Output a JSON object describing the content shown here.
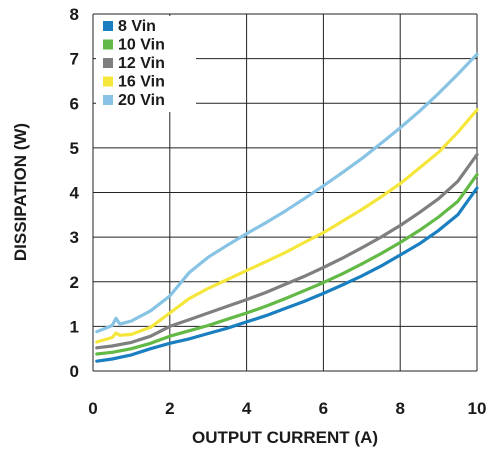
{
  "chart_data": {
    "type": "line",
    "xlabel": "OUTPUT CURRENT (A)",
    "ylabel": "DISSIPATION (W)",
    "xlim": [
      0,
      10
    ],
    "ylim": [
      0,
      8
    ],
    "xticks": [
      "0",
      "2",
      "4",
      "6",
      "8",
      "10"
    ],
    "yticks": [
      "0",
      "1",
      "2",
      "3",
      "4",
      "5",
      "6",
      "7",
      "8"
    ],
    "grid": true,
    "legend_position": "top-left",
    "series": [
      {
        "name": "8 Vin",
        "color": "#1a7fc1",
        "x": [
          0.1,
          0.5,
          1.0,
          1.5,
          2.0,
          2.5,
          3.0,
          3.5,
          4.0,
          4.5,
          5.0,
          5.5,
          6.0,
          6.5,
          7.0,
          7.5,
          8.0,
          8.5,
          9.0,
          9.5,
          10.0
        ],
        "y": [
          0.22,
          0.27,
          0.36,
          0.5,
          0.62,
          0.72,
          0.84,
          0.96,
          1.1,
          1.24,
          1.4,
          1.56,
          1.74,
          1.93,
          2.13,
          2.35,
          2.6,
          2.85,
          3.15,
          3.5,
          4.1
        ]
      },
      {
        "name": "10 Vin",
        "color": "#63b946",
        "x": [
          0.1,
          0.5,
          1.0,
          1.5,
          2.0,
          2.5,
          3.0,
          3.5,
          4.0,
          4.5,
          5.0,
          5.5,
          6.0,
          6.5,
          7.0,
          7.5,
          8.0,
          8.5,
          9.0,
          9.5,
          10.0
        ],
        "y": [
          0.38,
          0.42,
          0.5,
          0.62,
          0.78,
          0.9,
          1.02,
          1.16,
          1.3,
          1.45,
          1.62,
          1.8,
          1.98,
          2.18,
          2.4,
          2.63,
          2.88,
          3.15,
          3.45,
          3.8,
          4.4
        ]
      },
      {
        "name": "12 Vin",
        "color": "#7f7f7f",
        "x": [
          0.1,
          0.5,
          1.0,
          1.5,
          2.0,
          2.5,
          3.0,
          3.5,
          4.0,
          4.5,
          5.0,
          5.5,
          6.0,
          6.5,
          7.0,
          7.5,
          8.0,
          8.5,
          9.0,
          9.5,
          10.0
        ],
        "y": [
          0.52,
          0.56,
          0.64,
          0.78,
          1.0,
          1.15,
          1.3,
          1.45,
          1.6,
          1.76,
          1.94,
          2.12,
          2.32,
          2.53,
          2.76,
          3.0,
          3.26,
          3.55,
          3.86,
          4.25,
          4.85
        ]
      },
      {
        "name": "16 Vin",
        "color": "#f5e63c",
        "x": [
          0.1,
          0.5,
          0.6,
          0.7,
          1.0,
          1.5,
          2.0,
          2.5,
          3.0,
          3.5,
          4.0,
          4.5,
          5.0,
          5.5,
          6.0,
          6.5,
          7.0,
          7.5,
          8.0,
          8.5,
          9.0,
          9.5,
          10.0
        ],
        "y": [
          0.65,
          0.75,
          0.85,
          0.8,
          0.82,
          0.98,
          1.3,
          1.62,
          1.85,
          2.05,
          2.25,
          2.45,
          2.65,
          2.88,
          3.1,
          3.36,
          3.62,
          3.9,
          4.2,
          4.55,
          4.9,
          5.35,
          5.85
        ]
      },
      {
        "name": "20 Vin",
        "color": "#87c3e4",
        "x": [
          0.1,
          0.3,
          0.5,
          0.6,
          0.7,
          1.0,
          1.5,
          2.0,
          2.5,
          3.0,
          3.5,
          4.0,
          4.5,
          5.0,
          5.5,
          6.0,
          6.5,
          7.0,
          7.5,
          8.0,
          8.5,
          9.0,
          9.5,
          10.0
        ],
        "y": [
          0.88,
          0.95,
          1.02,
          1.18,
          1.05,
          1.12,
          1.35,
          1.68,
          2.2,
          2.55,
          2.82,
          3.08,
          3.32,
          3.58,
          3.86,
          4.15,
          4.45,
          4.76,
          5.1,
          5.45,
          5.82,
          6.22,
          6.65,
          7.1
        ]
      }
    ]
  }
}
